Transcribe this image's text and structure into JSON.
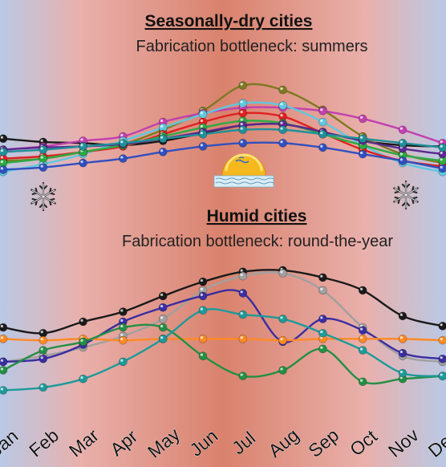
{
  "colors": {
    "winter_bg": "#b9c9e6",
    "summer_bg": "#d9826d",
    "spring_bg": "#e9b0ac"
  },
  "panels": {
    "top": {
      "title": "Seasonally-dry cities",
      "subtitle": "Fabrication bottleneck: summers",
      "icons": [
        "snowflake-icon",
        "sun-over-water-icon",
        "snowflake-icon"
      ]
    },
    "bottom": {
      "title": "Humid cities",
      "subtitle": "Fabrication bottleneck: round-the-year"
    }
  },
  "chart_data": [
    {
      "type": "line",
      "title": "Seasonally-dry cities",
      "subtitle": "Fabrication bottleneck: summers",
      "categories": [
        "Jan",
        "Feb",
        "Mar",
        "Apr",
        "May",
        "Jun",
        "Jul",
        "Aug",
        "Sep",
        "Oct",
        "Nov",
        "Dec"
      ],
      "ylim": [
        0,
        100
      ],
      "y_axis_shown": false,
      "series": [
        {
          "color": "#1a1a1a",
          "values": [
            40,
            37,
            36,
            34,
            38,
            45,
            52,
            53,
            46,
            38,
            34,
            33
          ]
        },
        {
          "color": "#7d7a22",
          "values": [
            20,
            22,
            28,
            35,
            48,
            65,
            88,
            84,
            66,
            42,
            26,
            18
          ]
        },
        {
          "color": "#c23fb0",
          "values": [
            30,
            33,
            38,
            42,
            55,
            63,
            68,
            68,
            65,
            58,
            48,
            36
          ]
        },
        {
          "color": "#5ec8e0",
          "values": [
            10,
            17,
            26,
            38,
            50,
            62,
            72,
            70,
            55,
            34,
            18,
            10
          ]
        },
        {
          "color": "#e02020",
          "values": [
            22,
            24,
            28,
            33,
            44,
            55,
            63,
            60,
            45,
            30,
            20,
            15
          ]
        },
        {
          "color": "#2eaa44",
          "values": [
            18,
            22,
            28,
            34,
            42,
            50,
            56,
            54,
            44,
            34,
            25,
            20
          ]
        },
        {
          "color": "#5a2a90",
          "values": [
            30,
            32,
            33,
            35,
            40,
            46,
            52,
            53,
            46,
            38,
            31,
            26
          ]
        },
        {
          "color": "#20909a",
          "values": [
            28,
            30,
            33,
            36,
            40,
            44,
            48,
            48,
            44,
            40,
            36,
            32
          ]
        },
        {
          "color": "#3050c0",
          "values": [
            12,
            14,
            18,
            22,
            28,
            33,
            36,
            36,
            32,
            26,
            20,
            13
          ]
        }
      ]
    },
    {
      "type": "line",
      "title": "Humid cities",
      "subtitle": "Fabrication bottleneck: round-the-year",
      "categories": [
        "Jan",
        "Feb",
        "Mar",
        "Apr",
        "May",
        "Jun",
        "Jul",
        "Aug",
        "Sep",
        "Oct",
        "Nov",
        "Dec"
      ],
      "ylim": [
        0,
        100
      ],
      "y_axis_shown": false,
      "series": [
        {
          "color": "#1a1a1a",
          "values": [
            46,
            42,
            50,
            57,
            68,
            78,
            85,
            86,
            81,
            72,
            54,
            47
          ]
        },
        {
          "color": "#a0a0a0",
          "values": [
            22,
            26,
            32,
            40,
            52,
            72,
            82,
            84,
            72,
            46,
            26,
            22
          ]
        },
        {
          "color": "#3a2ea0",
          "values": [
            22,
            24,
            34,
            50,
            60,
            68,
            70,
            36,
            52,
            44,
            28,
            24
          ]
        },
        {
          "color": "#ff8a25",
          "values": [
            38,
            37,
            38,
            37,
            38,
            38,
            38,
            37,
            38,
            38,
            38,
            37
          ]
        },
        {
          "color": "#248f44",
          "values": [
            16,
            30,
            36,
            46,
            46,
            26,
            12,
            16,
            31,
            8,
            10,
            12
          ]
        },
        {
          "color": "#1e9a9a",
          "values": [
            2,
            4,
            10,
            22,
            38,
            58,
            55,
            52,
            42,
            30,
            14,
            12
          ]
        }
      ]
    }
  ],
  "x_axis": {
    "labels": [
      "Jan",
      "Feb",
      "Mar",
      "Apr",
      "May",
      "Jun",
      "Jul",
      "Aug",
      "Sep",
      "Oct",
      "Nov",
      "Dec"
    ]
  }
}
